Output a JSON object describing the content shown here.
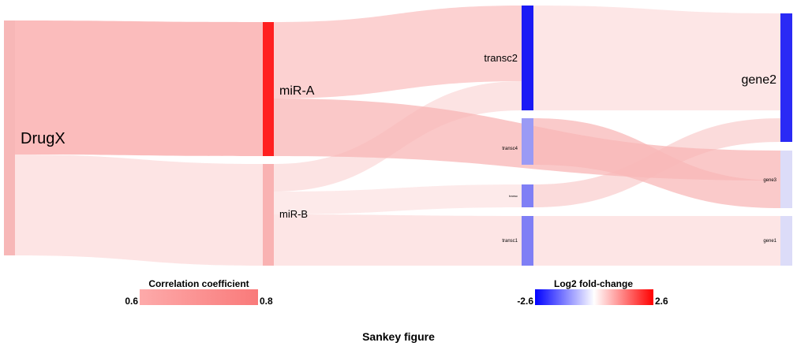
{
  "caption": "Sankey figure",
  "nodes": {
    "drugx": {
      "label": "DrugX",
      "color": "#f7b7b7"
    },
    "mir_a": {
      "label": "miR-A",
      "color": "#ff2020"
    },
    "mir_b": {
      "label": "miR-B",
      "color": "#f9b2b2"
    },
    "transc2": {
      "label": "transc2",
      "color": "#1a1af5"
    },
    "transc4": {
      "label": "transc4",
      "color": "#9a9af5"
    },
    "transc5": {
      "label": "transc",
      "color": "#7f7ff5"
    },
    "transc1": {
      "label": "transc1",
      "color": "#7f7ff5"
    },
    "gene2": {
      "label": "gene2",
      "color": "#2a2af5"
    },
    "gene3": {
      "label": "gene3",
      "color": "#dcdcf8"
    },
    "gene1": {
      "label": "gene1",
      "color": "#dcdcf8"
    }
  },
  "links": [
    {
      "source": "DrugX",
      "target": "miR-A",
      "color": "#fbb8b8",
      "value": 0.8
    },
    {
      "source": "DrugX",
      "target": "miR-B",
      "color": "#fde3e3",
      "value": 0.6
    },
    {
      "source": "miR-A",
      "target": "transc2",
      "color": "#fcc9c9"
    },
    {
      "source": "miR-A",
      "target": "gene3",
      "color": "#f8b6b6"
    },
    {
      "source": "miR-B",
      "target": "transc2",
      "color": "#fbdede"
    },
    {
      "source": "miR-B",
      "target": "transc5",
      "color": "#fde6e6"
    },
    {
      "source": "miR-B",
      "target": "transc1",
      "color": "#fde0e0"
    },
    {
      "source": "transc2",
      "target": "gene2",
      "color": "#fde2e2"
    },
    {
      "source": "transc4",
      "target": "gene3",
      "color": "#f8b8b8"
    },
    {
      "source": "transc5",
      "target": "gene2",
      "color": "#fad2d2"
    },
    {
      "source": "transc1",
      "target": "gene1",
      "color": "#fde0e0"
    }
  ],
  "legend_correlation": {
    "title": "Correlation coefficient",
    "min_label": "0.6",
    "max_label": "0.8",
    "color_low": "#fdaaaa",
    "color_high": "#f97a7a"
  },
  "legend_fold": {
    "title": "Log2 fold-change",
    "min_label": "-2.6",
    "max_label": "2.6",
    "color_low": "#0000ff",
    "color_mid": "#ffffff",
    "color_high": "#ff0000"
  }
}
